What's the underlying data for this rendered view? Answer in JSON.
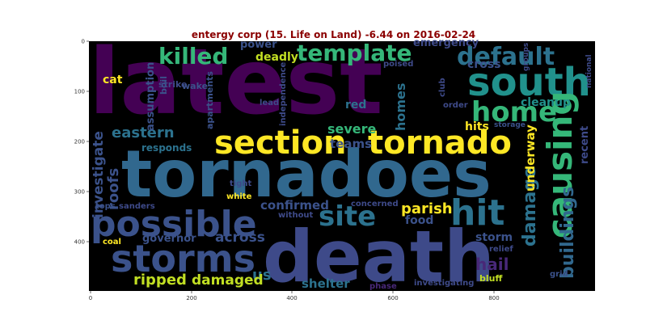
{
  "title": "entergy corp (15. Life on Land) -6.44 on 2016-02-24",
  "axes": {
    "x_ticks": [
      "0",
      "200",
      "400",
      "600",
      "800"
    ],
    "y_ticks": [
      "0",
      "100",
      "200",
      "300",
      "400"
    ],
    "background": "#000000"
  },
  "words": [
    {
      "text": "latest",
      "x": 110,
      "y": 140,
      "size": 112,
      "color": "#440154",
      "vertical": false
    },
    {
      "text": "tornadoes",
      "x": 150,
      "y": 243,
      "size": 80,
      "color": "#31688e",
      "vertical": false
    },
    {
      "text": "death",
      "x": 325,
      "y": 348,
      "size": 88,
      "color": "#3e4a89",
      "vertical": false
    },
    {
      "text": "possible",
      "x": 112,
      "y": 292,
      "size": 44,
      "color": "#3b528b",
      "vertical": false
    },
    {
      "text": "storms",
      "x": 137,
      "y": 336,
      "size": 46,
      "color": "#3b528b",
      "vertical": false
    },
    {
      "text": "section",
      "x": 265,
      "y": 190,
      "size": 40,
      "color": "#fde725",
      "vertical": false
    },
    {
      "text": "tornado",
      "x": 455,
      "y": 190,
      "size": 40,
      "color": "#fde725",
      "vertical": false
    },
    {
      "text": "south",
      "x": 578,
      "y": 118,
      "size": 48,
      "color": "#21918c",
      "vertical": false
    },
    {
      "text": "home",
      "x": 583,
      "y": 150,
      "size": 34,
      "color": "#35b779",
      "vertical": false
    },
    {
      "text": "default",
      "x": 565,
      "y": 80,
      "size": 30,
      "color": "#2c728e",
      "vertical": false
    },
    {
      "text": "template",
      "x": 367,
      "y": 75,
      "size": 28,
      "color": "#35b779",
      "vertical": false
    },
    {
      "text": "killed",
      "x": 196,
      "y": 79,
      "size": 28,
      "color": "#35b779",
      "vertical": false
    },
    {
      "text": "site",
      "x": 394,
      "y": 279,
      "size": 34,
      "color": "#2c728e",
      "vertical": false
    },
    {
      "text": "hit",
      "x": 557,
      "y": 278,
      "size": 44,
      "color": "#2c728e",
      "vertical": false
    },
    {
      "text": "causing",
      "x": 707,
      "y": 295,
      "size": 42,
      "color": "#35b779",
      "vertical": true
    },
    {
      "text": "damage",
      "x": 662,
      "y": 305,
      "size": 22,
      "color": "#2c728e",
      "vertical": true
    },
    {
      "text": "buildings",
      "x": 709,
      "y": 345,
      "size": 22,
      "color": "#31688e",
      "vertical": true
    },
    {
      "text": "eastern",
      "x": 138,
      "y": 170,
      "size": 18,
      "color": "#2c728e",
      "vertical": false
    },
    {
      "text": "investigate",
      "x": 127,
      "y": 270,
      "size": 17,
      "color": "#3b528b",
      "vertical": true
    },
    {
      "text": "roofs",
      "x": 146,
      "y": 260,
      "size": 18,
      "color": "#3b528b",
      "vertical": true
    },
    {
      "text": "assumption",
      "x": 190,
      "y": 162,
      "size": 13,
      "color": "#3b528b",
      "vertical": true
    },
    {
      "text": "cat",
      "x": 127,
      "y": 103,
      "size": 14,
      "color": "#fde725",
      "vertical": false
    },
    {
      "text": "deadly",
      "x": 316,
      "y": 75,
      "size": 14,
      "color": "#c2df23",
      "vertical": false
    },
    {
      "text": "power",
      "x": 297,
      "y": 59,
      "size": 13,
      "color": "#3b528b",
      "vertical": false
    },
    {
      "text": "strike",
      "x": 196,
      "y": 108,
      "size": 11,
      "color": "#3e4a89",
      "vertical": false
    },
    {
      "text": "boil",
      "x": 206,
      "y": 117,
      "size": 11,
      "color": "#3b528b",
      "vertical": true
    },
    {
      "text": "wake",
      "x": 225,
      "y": 110,
      "size": 11,
      "color": "#3b528b",
      "vertical": false
    },
    {
      "text": "apartments",
      "x": 263,
      "y": 160,
      "size": 11,
      "color": "#3b528b",
      "vertical": true
    },
    {
      "text": "responds",
      "x": 175,
      "y": 187,
      "size": 12,
      "color": "#2c728e",
      "vertical": false
    },
    {
      "text": "severe",
      "x": 405,
      "y": 165,
      "size": 16,
      "color": "#35b779",
      "vertical": false
    },
    {
      "text": "teams",
      "x": 408,
      "y": 183,
      "size": 15,
      "color": "#3b528b",
      "vertical": false
    },
    {
      "text": "red",
      "x": 427,
      "y": 134,
      "size": 14,
      "color": "#2c728e",
      "vertical": false
    },
    {
      "text": "homes",
      "x": 501,
      "y": 162,
      "size": 16,
      "color": "#2c728e",
      "vertical": true
    },
    {
      "text": "hits",
      "x": 575,
      "y": 161,
      "size": 14,
      "color": "#fde725",
      "vertical": false
    },
    {
      "text": "storage",
      "x": 611,
      "y": 157,
      "size": 9,
      "color": "#3b528b",
      "vertical": false
    },
    {
      "text": "cleanup",
      "x": 644,
      "y": 131,
      "size": 14,
      "color": "#21918c",
      "vertical": false
    },
    {
      "text": "recent",
      "x": 727,
      "y": 203,
      "size": 13,
      "color": "#3e4a89",
      "vertical": true
    },
    {
      "text": "underway",
      "x": 661,
      "y": 237,
      "size": 15,
      "color": "#fde725",
      "vertical": true
    },
    {
      "text": "cross",
      "x": 578,
      "y": 84,
      "size": 14,
      "color": "#3b528b",
      "vertical": false
    },
    {
      "text": "emergency",
      "x": 511,
      "y": 57,
      "size": 13,
      "color": "#3e4a89",
      "vertical": false
    },
    {
      "text": "groups",
      "x": 653,
      "y": 88,
      "size": 9,
      "color": "#3e4a89",
      "vertical": true
    },
    {
      "text": "national",
      "x": 731,
      "y": 109,
      "size": 9,
      "color": "#3e4a89",
      "vertical": true
    },
    {
      "text": "poised",
      "x": 474,
      "y": 82,
      "size": 10,
      "color": "#3e4a89",
      "vertical": false
    },
    {
      "text": "lead",
      "x": 321,
      "y": 130,
      "size": 10,
      "color": "#3e4a89",
      "vertical": false
    },
    {
      "text": "independence",
      "x": 353,
      "y": 156,
      "size": 10,
      "color": "#3e4a89",
      "vertical": true
    },
    {
      "text": "club",
      "x": 550,
      "y": 120,
      "size": 10,
      "color": "#3e4a89",
      "vertical": true
    },
    {
      "text": "order",
      "x": 548,
      "y": 133,
      "size": 10,
      "color": "#3e4a89",
      "vertical": false
    },
    {
      "text": "confirmed",
      "x": 322,
      "y": 259,
      "size": 15,
      "color": "#3b528b",
      "vertical": false
    },
    {
      "text": "parish",
      "x": 496,
      "y": 264,
      "size": 18,
      "color": "#fde725",
      "vertical": false
    },
    {
      "text": "food",
      "x": 501,
      "y": 277,
      "size": 14,
      "color": "#3b528b",
      "vertical": false
    },
    {
      "text": "tight",
      "x": 284,
      "y": 230,
      "size": 10,
      "color": "#3e4a89",
      "vertical": false
    },
    {
      "text": "white",
      "x": 280,
      "y": 246,
      "size": 10,
      "color": "#fde725",
      "vertical": false
    },
    {
      "text": "concerned",
      "x": 434,
      "y": 255,
      "size": 10,
      "color": "#3e4a89",
      "vertical": false
    },
    {
      "text": "without",
      "x": 344,
      "y": 269,
      "size": 10,
      "color": "#3e4a89",
      "vertical": false
    },
    {
      "text": "tops",
      "x": 118,
      "y": 258,
      "size": 10,
      "color": "#3b528b",
      "vertical": false
    },
    {
      "text": "sanders",
      "x": 147,
      "y": 258,
      "size": 10,
      "color": "#3e4a89",
      "vertical": false
    },
    {
      "text": "coal",
      "x": 127,
      "y": 302,
      "size": 10,
      "color": "#fde725",
      "vertical": false
    },
    {
      "text": "governor",
      "x": 176,
      "y": 299,
      "size": 13,
      "color": "#3b528b",
      "vertical": false
    },
    {
      "text": "across",
      "x": 266,
      "y": 299,
      "size": 17,
      "color": "#3b528b",
      "vertical": false
    },
    {
      "text": "storm",
      "x": 588,
      "y": 298,
      "size": 14,
      "color": "#3b528b",
      "vertical": false
    },
    {
      "text": "relief",
      "x": 605,
      "y": 311,
      "size": 10,
      "color": "#3e4a89",
      "vertical": false
    },
    {
      "text": "hail",
      "x": 588,
      "y": 334,
      "size": 20,
      "color": "#482878",
      "vertical": false
    },
    {
      "text": "us",
      "x": 312,
      "y": 346,
      "size": 18,
      "color": "#2c728e",
      "vertical": false
    },
    {
      "text": "ripped",
      "x": 165,
      "y": 352,
      "size": 18,
      "color": "#c2df23",
      "vertical": false
    },
    {
      "text": "damaged",
      "x": 237,
      "y": 352,
      "size": 17,
      "color": "#c2df23",
      "vertical": false
    },
    {
      "text": "shelter",
      "x": 373,
      "y": 356,
      "size": 15,
      "color": "#2c728e",
      "vertical": false
    },
    {
      "text": "phase",
      "x": 457,
      "y": 357,
      "size": 10,
      "color": "#482878",
      "vertical": false
    },
    {
      "text": "investigating",
      "x": 512,
      "y": 353,
      "size": 10,
      "color": "#3e4a89",
      "vertical": false
    },
    {
      "text": "bluff",
      "x": 593,
      "y": 348,
      "size": 11,
      "color": "#c2df23",
      "vertical": false
    },
    {
      "text": "grid",
      "x": 680,
      "y": 342,
      "size": 10,
      "color": "#3b528b",
      "vertical": false
    }
  ]
}
